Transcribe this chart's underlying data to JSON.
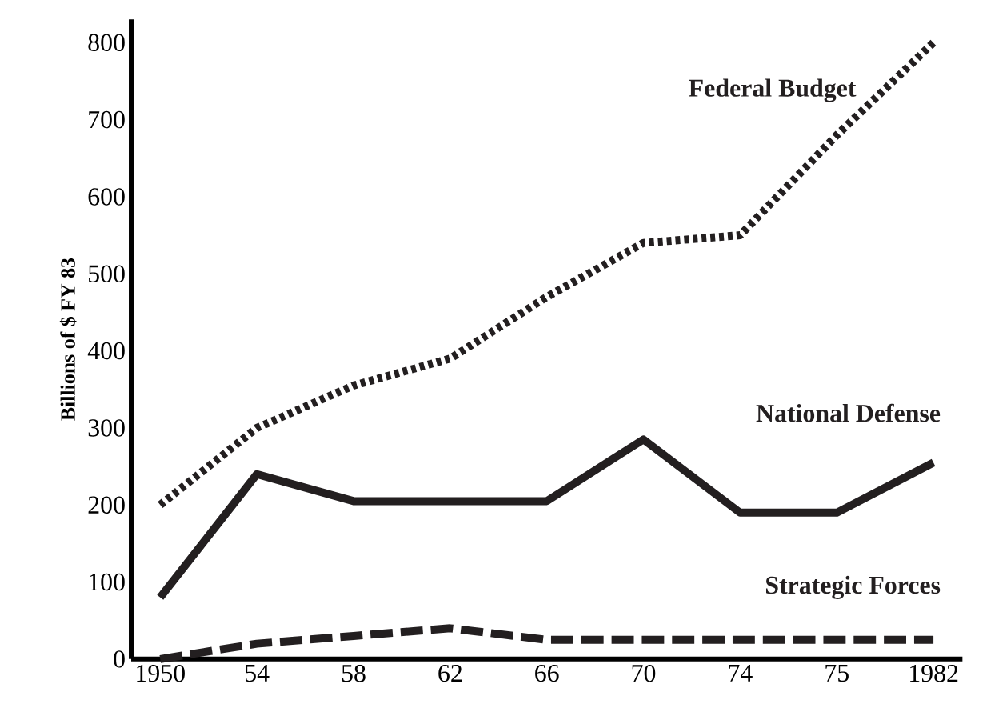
{
  "chart_data": {
    "type": "line",
    "ylabel": "Billions of $ FY 83",
    "categories": [
      "1950",
      "54",
      "58",
      "62",
      "66",
      "70",
      "74",
      "75",
      "1982"
    ],
    "series": [
      {
        "name": "Federal Budget",
        "color": "#231f20",
        "line_style": "dotted",
        "values": [
          200,
          300,
          355,
          390,
          470,
          540,
          550,
          680,
          800
        ]
      },
      {
        "name": "National Defense",
        "color": "#231f20",
        "line_style": "solid",
        "values": [
          80,
          240,
          205,
          205,
          205,
          285,
          190,
          190,
          255
        ]
      },
      {
        "name": "Strategic Forces",
        "color": "#231f20",
        "line_style": "dashed",
        "values": [
          0,
          20,
          30,
          40,
          25,
          25,
          25,
          25,
          25
        ]
      }
    ],
    "ylim": [
      0,
      830
    ],
    "yticks": [
      0,
      100,
      200,
      300,
      400,
      500,
      600,
      700,
      800
    ],
    "grid": false,
    "legend": false,
    "marker": "none"
  }
}
